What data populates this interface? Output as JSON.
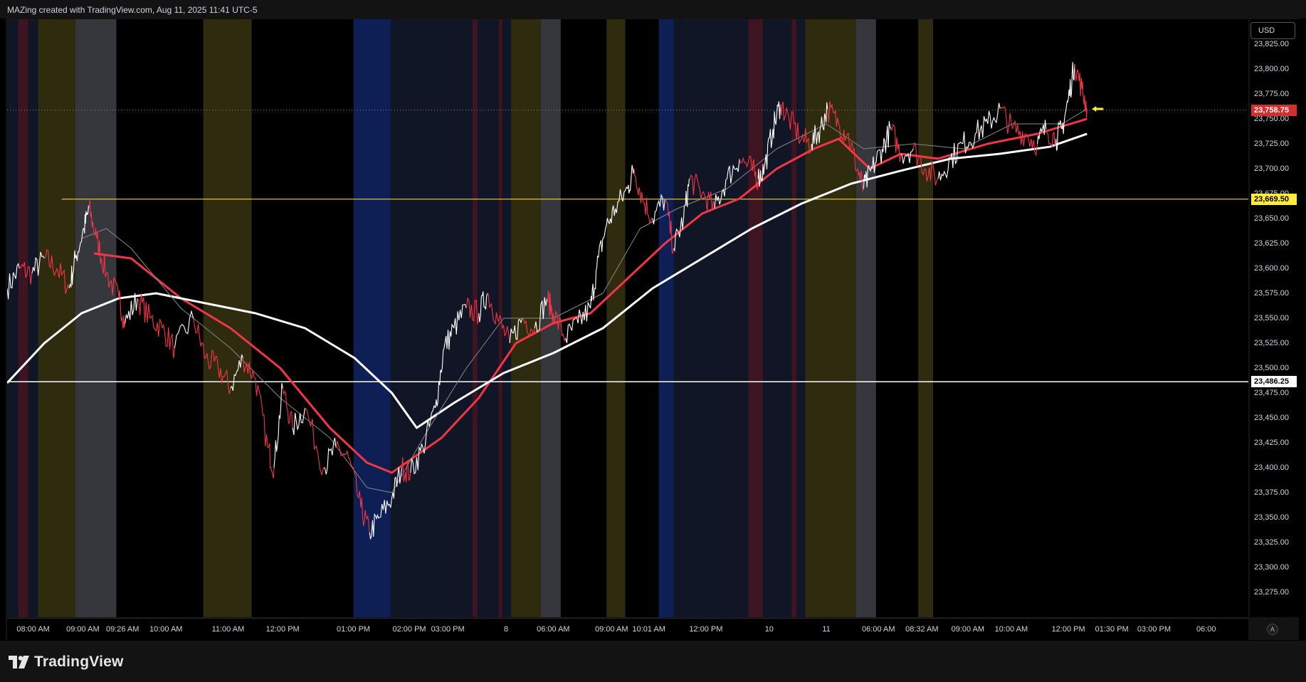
{
  "header": {
    "caption": "MAZing created with TradingView.com, Aug 11, 2025 11:41 UTC-5"
  },
  "footer": {
    "brand": "TradingView",
    "brand_icon": "tradingview-logo-icon"
  },
  "axis": {
    "currency": "USD",
    "auto_label": "A"
  },
  "colors": {
    "background": "#000000",
    "panel": "#131313",
    "price_up": "#ffffff",
    "price_down": "#f23645",
    "ma_red": "#f23645",
    "ma_white": "#ffffff",
    "ma_grey": "#888888",
    "level_yellow": "#ffeb3b",
    "level_white": "#ffffff",
    "last_price": "#d32f2f",
    "session_yellow": "#2e2b0f",
    "session_grey": "#35373d",
    "session_blue": "#0e1f56",
    "session_navy": "#101625",
    "session_maroon": "#3d1522"
  },
  "chart_data": {
    "type": "line",
    "symbol_currency": "USD",
    "ylim": [
      23250,
      23850
    ],
    "y_ticks": [
      "23,825.00",
      "23,800.00",
      "23,775.00",
      "23,750.00",
      "23,725.00",
      "23,700.00",
      "23,675.00",
      "23,650.00",
      "23,625.00",
      "23,600.00",
      "23,575.00",
      "23,550.00",
      "23,525.00",
      "23,500.00",
      "23,475.00",
      "23,450.00",
      "23,425.00",
      "23,400.00",
      "23,375.00",
      "23,350.00",
      "23,325.00",
      "23,300.00",
      "23,275.00"
    ],
    "x_ticks": [
      {
        "label": "08:00 AM",
        "t": 0.021
      },
      {
        "label": "09:00 AM",
        "t": 0.061
      },
      {
        "label": "09:26 AM",
        "t": 0.093
      },
      {
        "label": "10:00 AM",
        "t": 0.128
      },
      {
        "label": "11:00 AM",
        "t": 0.178
      },
      {
        "label": "12:00 PM",
        "t": 0.222
      },
      {
        "label": "01:00 PM",
        "t": 0.279
      },
      {
        "label": "02:00 PM",
        "t": 0.324
      },
      {
        "label": "03:00 PM",
        "t": 0.355
      },
      {
        "label": "8",
        "t": 0.402
      },
      {
        "label": "06:00 AM",
        "t": 0.44
      },
      {
        "label": "09:00 AM",
        "t": 0.487
      },
      {
        "label": "10:01 AM",
        "t": 0.517
      },
      {
        "label": "12:00 PM",
        "t": 0.563
      },
      {
        "label": "10",
        "t": 0.614
      },
      {
        "label": "11",
        "t": 0.66
      },
      {
        "label": "06:00 AM",
        "t": 0.702
      },
      {
        "label": "08:32 AM",
        "t": 0.737
      },
      {
        "label": "09:00 AM",
        "t": 0.774
      },
      {
        "label": "10:00 AM",
        "t": 0.809
      },
      {
        "label": "12:00 PM",
        "t": 0.855
      },
      {
        "label": "01:30 PM",
        "t": 0.89
      },
      {
        "label": "03:00 PM",
        "t": 0.924
      },
      {
        "label": "06:00",
        "t": 0.966
      }
    ],
    "price_series": [
      {
        "t": 0.0,
        "y": 23580
      },
      {
        "t": 0.01,
        "y": 23600
      },
      {
        "t": 0.02,
        "y": 23595
      },
      {
        "t": 0.03,
        "y": 23610
      },
      {
        "t": 0.04,
        "y": 23600
      },
      {
        "t": 0.05,
        "y": 23580
      },
      {
        "t": 0.055,
        "y": 23610
      },
      {
        "t": 0.062,
        "y": 23640
      },
      {
        "t": 0.066,
        "y": 23660
      },
      {
        "t": 0.072,
        "y": 23630
      },
      {
        "t": 0.08,
        "y": 23595
      },
      {
        "t": 0.09,
        "y": 23570
      },
      {
        "t": 0.095,
        "y": 23545
      },
      {
        "t": 0.105,
        "y": 23570
      },
      {
        "t": 0.115,
        "y": 23550
      },
      {
        "t": 0.125,
        "y": 23540
      },
      {
        "t": 0.135,
        "y": 23520
      },
      {
        "t": 0.15,
        "y": 23550
      },
      {
        "t": 0.16,
        "y": 23510
      },
      {
        "t": 0.17,
        "y": 23500
      },
      {
        "t": 0.18,
        "y": 23480
      },
      {
        "t": 0.19,
        "y": 23510
      },
      {
        "t": 0.2,
        "y": 23490
      },
      {
        "t": 0.21,
        "y": 23420
      },
      {
        "t": 0.215,
        "y": 23400
      },
      {
        "t": 0.222,
        "y": 23480
      },
      {
        "t": 0.23,
        "y": 23440
      },
      {
        "t": 0.24,
        "y": 23460
      },
      {
        "t": 0.255,
        "y": 23400
      },
      {
        "t": 0.265,
        "y": 23420
      },
      {
        "t": 0.275,
        "y": 23410
      },
      {
        "t": 0.285,
        "y": 23360
      },
      {
        "t": 0.292,
        "y": 23335
      },
      {
        "t": 0.3,
        "y": 23350
      },
      {
        "t": 0.31,
        "y": 23370
      },
      {
        "t": 0.318,
        "y": 23400
      },
      {
        "t": 0.325,
        "y": 23395
      },
      {
        "t": 0.335,
        "y": 23420
      },
      {
        "t": 0.345,
        "y": 23460
      },
      {
        "t": 0.352,
        "y": 23520
      },
      {
        "t": 0.36,
        "y": 23540
      },
      {
        "t": 0.37,
        "y": 23560
      },
      {
        "t": 0.38,
        "y": 23555
      },
      {
        "t": 0.387,
        "y": 23575
      },
      {
        "t": 0.395,
        "y": 23550
      },
      {
        "t": 0.405,
        "y": 23525
      },
      {
        "t": 0.415,
        "y": 23550
      },
      {
        "t": 0.425,
        "y": 23540
      },
      {
        "t": 0.435,
        "y": 23570
      },
      {
        "t": 0.44,
        "y": 23555
      },
      {
        "t": 0.45,
        "y": 23530
      },
      {
        "t": 0.46,
        "y": 23545
      },
      {
        "t": 0.47,
        "y": 23560
      },
      {
        "t": 0.475,
        "y": 23600
      },
      {
        "t": 0.482,
        "y": 23640
      },
      {
        "t": 0.49,
        "y": 23660
      },
      {
        "t": 0.5,
        "y": 23680
      },
      {
        "t": 0.505,
        "y": 23700
      },
      {
        "t": 0.512,
        "y": 23670
      },
      {
        "t": 0.52,
        "y": 23650
      },
      {
        "t": 0.53,
        "y": 23670
      },
      {
        "t": 0.537,
        "y": 23620
      },
      {
        "t": 0.545,
        "y": 23650
      },
      {
        "t": 0.55,
        "y": 23690
      },
      {
        "t": 0.56,
        "y": 23675
      },
      {
        "t": 0.57,
        "y": 23660
      },
      {
        "t": 0.58,
        "y": 23690
      },
      {
        "t": 0.59,
        "y": 23710
      },
      {
        "t": 0.6,
        "y": 23700
      },
      {
        "t": 0.605,
        "y": 23690
      },
      {
        "t": 0.61,
        "y": 23700
      },
      {
        "t": 0.617,
        "y": 23740
      },
      {
        "t": 0.623,
        "y": 23765
      },
      {
        "t": 0.63,
        "y": 23750
      },
      {
        "t": 0.64,
        "y": 23730
      },
      {
        "t": 0.648,
        "y": 23725
      },
      {
        "t": 0.655,
        "y": 23740
      },
      {
        "t": 0.661,
        "y": 23760
      },
      {
        "t": 0.67,
        "y": 23745
      },
      {
        "t": 0.677,
        "y": 23735
      },
      {
        "t": 0.685,
        "y": 23700
      },
      {
        "t": 0.69,
        "y": 23680
      },
      {
        "t": 0.697,
        "y": 23700
      },
      {
        "t": 0.705,
        "y": 23720
      },
      {
        "t": 0.712,
        "y": 23740
      },
      {
        "t": 0.72,
        "y": 23715
      },
      {
        "t": 0.73,
        "y": 23720
      },
      {
        "t": 0.74,
        "y": 23700
      },
      {
        "t": 0.75,
        "y": 23690
      },
      {
        "t": 0.76,
        "y": 23710
      },
      {
        "t": 0.77,
        "y": 23725
      },
      {
        "t": 0.78,
        "y": 23735
      },
      {
        "t": 0.79,
        "y": 23745
      },
      {
        "t": 0.8,
        "y": 23760
      },
      {
        "t": 0.81,
        "y": 23740
      },
      {
        "t": 0.82,
        "y": 23735
      },
      {
        "t": 0.83,
        "y": 23725
      },
      {
        "t": 0.837,
        "y": 23740
      },
      {
        "t": 0.845,
        "y": 23730
      },
      {
        "t": 0.85,
        "y": 23740
      },
      {
        "t": 0.855,
        "y": 23770
      },
      {
        "t": 0.86,
        "y": 23805
      },
      {
        "t": 0.866,
        "y": 23780
      },
      {
        "t": 0.87,
        "y": 23760
      }
    ],
    "series": [
      {
        "color": "red",
        "points": [
          {
            "t": 0.07,
            "y": 23615
          },
          {
            "t": 0.1,
            "y": 23610
          },
          {
            "t": 0.14,
            "y": 23570
          },
          {
            "t": 0.18,
            "y": 23540
          },
          {
            "t": 0.22,
            "y": 23500
          },
          {
            "t": 0.26,
            "y": 23440
          },
          {
            "t": 0.29,
            "y": 23405
          },
          {
            "t": 0.31,
            "y": 23395
          },
          {
            "t": 0.35,
            "y": 23430
          },
          {
            "t": 0.38,
            "y": 23470
          },
          {
            "t": 0.41,
            "y": 23525
          },
          {
            "t": 0.44,
            "y": 23545
          },
          {
            "t": 0.47,
            "y": 23555
          },
          {
            "t": 0.5,
            "y": 23590
          },
          {
            "t": 0.53,
            "y": 23625
          },
          {
            "t": 0.56,
            "y": 23655
          },
          {
            "t": 0.59,
            "y": 23670
          },
          {
            "t": 0.62,
            "y": 23700
          },
          {
            "t": 0.65,
            "y": 23720
          },
          {
            "t": 0.67,
            "y": 23730
          },
          {
            "t": 0.695,
            "y": 23700
          },
          {
            "t": 0.72,
            "y": 23715
          },
          {
            "t": 0.75,
            "y": 23710
          },
          {
            "t": 0.79,
            "y": 23725
          },
          {
            "t": 0.83,
            "y": 23735
          },
          {
            "t": 0.87,
            "y": 23750
          }
        ]
      },
      {
        "color": "white",
        "points": [
          {
            "t": 0.0,
            "y": 23485
          },
          {
            "t": 0.03,
            "y": 23525
          },
          {
            "t": 0.06,
            "y": 23555
          },
          {
            "t": 0.09,
            "y": 23570
          },
          {
            "t": 0.12,
            "y": 23575
          },
          {
            "t": 0.16,
            "y": 23565
          },
          {
            "t": 0.2,
            "y": 23555
          },
          {
            "t": 0.24,
            "y": 23540
          },
          {
            "t": 0.28,
            "y": 23510
          },
          {
            "t": 0.31,
            "y": 23475
          },
          {
            "t": 0.33,
            "y": 23440
          },
          {
            "t": 0.36,
            "y": 23465
          },
          {
            "t": 0.4,
            "y": 23495
          },
          {
            "t": 0.44,
            "y": 23515
          },
          {
            "t": 0.48,
            "y": 23540
          },
          {
            "t": 0.52,
            "y": 23580
          },
          {
            "t": 0.56,
            "y": 23610
          },
          {
            "t": 0.6,
            "y": 23640
          },
          {
            "t": 0.64,
            "y": 23665
          },
          {
            "t": 0.68,
            "y": 23685
          },
          {
            "t": 0.72,
            "y": 23698
          },
          {
            "t": 0.76,
            "y": 23710
          },
          {
            "t": 0.8,
            "y": 23715
          },
          {
            "t": 0.84,
            "y": 23722
          },
          {
            "t": 0.87,
            "y": 23735
          }
        ]
      },
      {
        "color": "grey",
        "points": [
          {
            "t": 0.06,
            "y": 23630
          },
          {
            "t": 0.08,
            "y": 23640
          },
          {
            "t": 0.1,
            "y": 23620
          },
          {
            "t": 0.14,
            "y": 23560
          },
          {
            "t": 0.18,
            "y": 23520
          },
          {
            "t": 0.22,
            "y": 23470
          },
          {
            "t": 0.26,
            "y": 23430
          },
          {
            "t": 0.29,
            "y": 23380
          },
          {
            "t": 0.31,
            "y": 23375
          },
          {
            "t": 0.34,
            "y": 23440
          },
          {
            "t": 0.37,
            "y": 23500
          },
          {
            "t": 0.4,
            "y": 23550
          },
          {
            "t": 0.44,
            "y": 23550
          },
          {
            "t": 0.48,
            "y": 23575
          },
          {
            "t": 0.51,
            "y": 23640
          },
          {
            "t": 0.54,
            "y": 23660
          },
          {
            "t": 0.58,
            "y": 23680
          },
          {
            "t": 0.62,
            "y": 23720
          },
          {
            "t": 0.66,
            "y": 23745
          },
          {
            "t": 0.69,
            "y": 23720
          },
          {
            "t": 0.73,
            "y": 23725
          },
          {
            "t": 0.77,
            "y": 23720
          },
          {
            "t": 0.81,
            "y": 23745
          },
          {
            "t": 0.85,
            "y": 23745
          },
          {
            "t": 0.87,
            "y": 23760
          }
        ]
      }
    ],
    "horizontal_levels": [
      {
        "value": 23669.5,
        "label": "23,669.50",
        "color": "yellow",
        "start_t": 0.044
      },
      {
        "value": 23486.25,
        "label": "23,486.25",
        "color": "white",
        "start_t": 0.0
      }
    ],
    "last_price": {
      "value": 23758.75,
      "label": "23,758.75"
    },
    "session_bands": [
      {
        "t0": 0.0,
        "t1": 0.009,
        "kind": "navy"
      },
      {
        "t0": 0.009,
        "t1": 0.017,
        "kind": "maroon"
      },
      {
        "t0": 0.017,
        "t1": 0.025,
        "kind": "navy"
      },
      {
        "t0": 0.025,
        "t1": 0.055,
        "kind": "yellow"
      },
      {
        "t0": 0.055,
        "t1": 0.088,
        "kind": "grey"
      },
      {
        "t0": 0.158,
        "t1": 0.197,
        "kind": "yellow"
      },
      {
        "t0": 0.279,
        "t1": 0.309,
        "kind": "blue"
      },
      {
        "t0": 0.309,
        "t1": 0.314,
        "kind": "navy"
      },
      {
        "t0": 0.314,
        "t1": 0.375,
        "kind": "navy"
      },
      {
        "t0": 0.375,
        "t1": 0.379,
        "kind": "maroon"
      },
      {
        "t0": 0.379,
        "t1": 0.396,
        "kind": "navy"
      },
      {
        "t0": 0.396,
        "t1": 0.399,
        "kind": "maroon"
      },
      {
        "t0": 0.399,
        "t1": 0.406,
        "kind": "navy"
      },
      {
        "t0": 0.406,
        "t1": 0.43,
        "kind": "yellow"
      },
      {
        "t0": 0.43,
        "t1": 0.446,
        "kind": "grey"
      },
      {
        "t0": 0.483,
        "t1": 0.498,
        "kind": "yellow"
      },
      {
        "t0": 0.525,
        "t1": 0.537,
        "kind": "blue"
      },
      {
        "t0": 0.537,
        "t1": 0.542,
        "kind": "navy"
      },
      {
        "t0": 0.542,
        "t1": 0.597,
        "kind": "navy"
      },
      {
        "t0": 0.597,
        "t1": 0.609,
        "kind": "maroon"
      },
      {
        "t0": 0.609,
        "t1": 0.632,
        "kind": "navy"
      },
      {
        "t0": 0.632,
        "t1": 0.636,
        "kind": "maroon"
      },
      {
        "t0": 0.636,
        "t1": 0.643,
        "kind": "navy"
      },
      {
        "t0": 0.643,
        "t1": 0.684,
        "kind": "yellow"
      },
      {
        "t0": 0.684,
        "t1": 0.7,
        "kind": "grey"
      },
      {
        "t0": 0.734,
        "t1": 0.746,
        "kind": "yellow"
      }
    ],
    "pointer_marker": {
      "t": 0.874,
      "y": 23760
    }
  }
}
